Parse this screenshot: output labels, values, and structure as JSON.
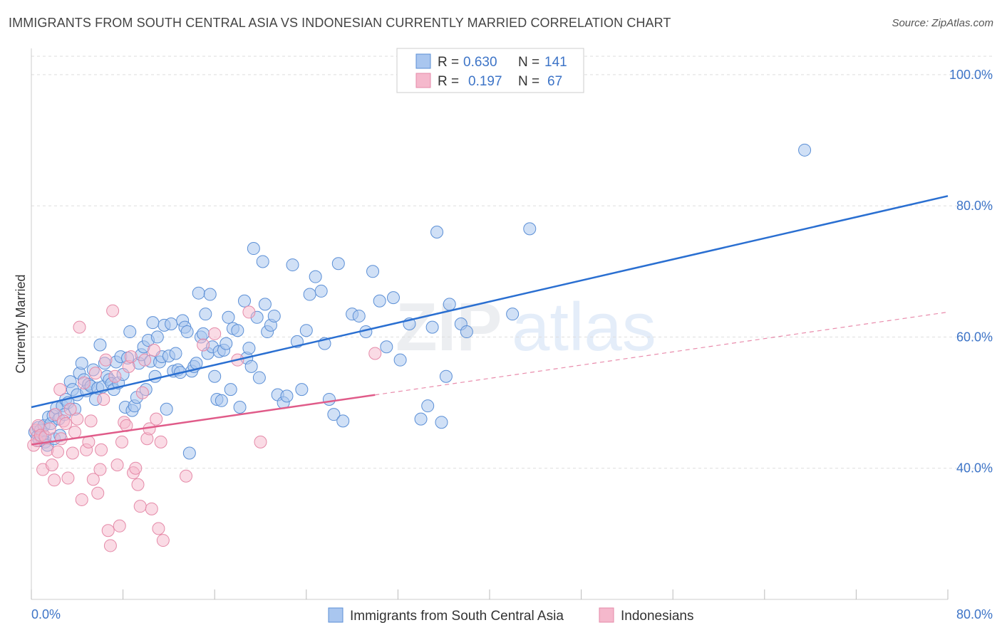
{
  "title": "IMMIGRANTS FROM SOUTH CENTRAL ASIA VS INDONESIAN CURRENTLY MARRIED CORRELATION CHART",
  "source": "Source: ZipAtlas.com",
  "watermark": {
    "zip": "ZIP",
    "atlas": "atlas"
  },
  "colors": {
    "blue_fill": "#a9c6ef",
    "blue_stroke": "#5b8fd6",
    "blue_line": "#2a6fd1",
    "pink_fill": "#f5b8cc",
    "pink_stroke": "#e58aa8",
    "pink_line": "#e05b89",
    "axis_text": "#3d74c7",
    "grid": "#dddddd"
  },
  "legend": {
    "rows": [
      {
        "r_label": "R =",
        "r_value": "0.630",
        "n_label": "N =",
        "n_value": "141"
      },
      {
        "r_label": "R =",
        "r_value": "0.197",
        "n_label": "N =",
        "n_value": "67"
      }
    ]
  },
  "chart_data": {
    "type": "scatter",
    "title": "IMMIGRANTS FROM SOUTH CENTRAL ASIA VS INDONESIAN CURRENTLY MARRIED CORRELATION CHART",
    "xlabel": "",
    "ylabel": "Currently Married",
    "xlim": [
      0,
      80
    ],
    "ylim": [
      20,
      104
    ],
    "x_tick_labels": [
      "0.0%",
      "80.0%"
    ],
    "y_ticks": [
      40,
      60,
      80,
      100
    ],
    "y_tick_labels": [
      "40.0%",
      "60.0%",
      "80.0%",
      "100.0%"
    ],
    "grid": true,
    "legend_position": "top-center",
    "series": [
      {
        "name": "Immigrants from South Central Asia",
        "color": "#a9c6ef",
        "trend": {
          "x": [
            0,
            80
          ],
          "y": [
            49.3,
            81.5
          ],
          "dashed_after": null
        },
        "points": [
          [
            0.3,
            45.5
          ],
          [
            0.5,
            44.8
          ],
          [
            0.6,
            46.2
          ],
          [
            0.7,
            44.2
          ],
          [
            0.8,
            45.8
          ],
          [
            0.9,
            44.6
          ],
          [
            1.0,
            45.2
          ],
          [
            1.1,
            46.5
          ],
          [
            1.2,
            44.0
          ],
          [
            1.4,
            43.5
          ],
          [
            1.5,
            47.8
          ],
          [
            1.7,
            46.8
          ],
          [
            1.9,
            48.0
          ],
          [
            2.0,
            44.5
          ],
          [
            2.2,
            49.2
          ],
          [
            2.4,
            47.5
          ],
          [
            2.5,
            45.0
          ],
          [
            2.7,
            49.5
          ],
          [
            2.9,
            48.2
          ],
          [
            3.0,
            50.5
          ],
          [
            3.2,
            50.0
          ],
          [
            3.4,
            53.2
          ],
          [
            3.6,
            52.0
          ],
          [
            3.8,
            49.0
          ],
          [
            4.0,
            51.2
          ],
          [
            4.2,
            54.5
          ],
          [
            4.4,
            56.0
          ],
          [
            4.6,
            53.5
          ],
          [
            4.8,
            51.8
          ],
          [
            5.0,
            52.8
          ],
          [
            5.2,
            52.5
          ],
          [
            5.4,
            55.0
          ],
          [
            5.6,
            50.5
          ],
          [
            5.8,
            52.2
          ],
          [
            6.0,
            58.8
          ],
          [
            6.2,
            52.4
          ],
          [
            6.4,
            56.0
          ],
          [
            6.6,
            54.0
          ],
          [
            6.8,
            53.5
          ],
          [
            7.0,
            52.9
          ],
          [
            7.2,
            52.0
          ],
          [
            7.4,
            56.2
          ],
          [
            7.6,
            53.0
          ],
          [
            7.8,
            57.0
          ],
          [
            8.0,
            54.3
          ],
          [
            8.2,
            49.3
          ],
          [
            8.4,
            56.8
          ],
          [
            8.6,
            60.8
          ],
          [
            8.8,
            48.8
          ],
          [
            9.0,
            49.5
          ],
          [
            9.2,
            50.8
          ],
          [
            9.4,
            56.0
          ],
          [
            9.6,
            57.3
          ],
          [
            9.8,
            58.5
          ],
          [
            10.0,
            52.0
          ],
          [
            10.2,
            59.5
          ],
          [
            10.4,
            56.3
          ],
          [
            10.6,
            62.2
          ],
          [
            10.8,
            54.0
          ],
          [
            11.0,
            60.0
          ],
          [
            11.2,
            56.2
          ],
          [
            11.4,
            57.0
          ],
          [
            11.6,
            61.8
          ],
          [
            11.8,
            49.0
          ],
          [
            12.0,
            57.1
          ],
          [
            12.2,
            62.0
          ],
          [
            12.4,
            54.8
          ],
          [
            12.6,
            57.5
          ],
          [
            12.8,
            55.0
          ],
          [
            13.0,
            54.6
          ],
          [
            13.2,
            62.5
          ],
          [
            13.4,
            61.5
          ],
          [
            13.6,
            60.8
          ],
          [
            13.8,
            42.3
          ],
          [
            14.0,
            54.8
          ],
          [
            14.2,
            55.5
          ],
          [
            14.4,
            56.0
          ],
          [
            14.6,
            66.7
          ],
          [
            14.8,
            60.0
          ],
          [
            15.0,
            60.5
          ],
          [
            15.2,
            63.5
          ],
          [
            15.4,
            57.5
          ],
          [
            15.6,
            66.5
          ],
          [
            15.8,
            58.5
          ],
          [
            16.0,
            54.0
          ],
          [
            16.2,
            50.5
          ],
          [
            16.4,
            57.8
          ],
          [
            16.6,
            50.3
          ],
          [
            16.8,
            58.0
          ],
          [
            17.0,
            59.0
          ],
          [
            17.2,
            63.0
          ],
          [
            17.4,
            52.0
          ],
          [
            17.6,
            61.3
          ],
          [
            18.0,
            61.0
          ],
          [
            18.2,
            49.3
          ],
          [
            18.6,
            65.5
          ],
          [
            18.8,
            56.8
          ],
          [
            19.0,
            58.3
          ],
          [
            19.2,
            55.5
          ],
          [
            19.4,
            73.5
          ],
          [
            19.7,
            63.0
          ],
          [
            19.9,
            53.8
          ],
          [
            20.2,
            71.5
          ],
          [
            20.4,
            65.0
          ],
          [
            20.6,
            60.8
          ],
          [
            20.9,
            61.8
          ],
          [
            21.2,
            63.2
          ],
          [
            21.5,
            51.2
          ],
          [
            22.0,
            50.0
          ],
          [
            22.3,
            51.0
          ],
          [
            22.8,
            71.0
          ],
          [
            23.2,
            59.3
          ],
          [
            23.6,
            52.0
          ],
          [
            24.0,
            61.0
          ],
          [
            24.3,
            66.5
          ],
          [
            24.8,
            69.2
          ],
          [
            25.3,
            67.0
          ],
          [
            25.6,
            59.0
          ],
          [
            26.0,
            50.5
          ],
          [
            26.4,
            48.2
          ],
          [
            26.8,
            71.2
          ],
          [
            27.2,
            47.2
          ],
          [
            28.0,
            63.5
          ],
          [
            28.6,
            63.2
          ],
          [
            29.2,
            60.8
          ],
          [
            29.8,
            70.0
          ],
          [
            30.4,
            65.5
          ],
          [
            31.0,
            58.5
          ],
          [
            31.6,
            66.0
          ],
          [
            32.2,
            56.5
          ],
          [
            33.0,
            62.0
          ],
          [
            34.0,
            47.5
          ],
          [
            34.6,
            49.5
          ],
          [
            35.0,
            61.5
          ],
          [
            35.4,
            76.0
          ],
          [
            35.8,
            47.0
          ],
          [
            36.2,
            54.0
          ],
          [
            36.5,
            65.0
          ],
          [
            37.5,
            62.0
          ],
          [
            38.0,
            60.8
          ],
          [
            42.0,
            63.5
          ],
          [
            43.5,
            76.5
          ],
          [
            67.5,
            88.5
          ]
        ]
      },
      {
        "name": "Indonesians",
        "color": "#f5b8cc",
        "trend": {
          "x": [
            0,
            80
          ],
          "y": [
            43.6,
            63.8
          ],
          "dashed_after": 30
        },
        "points": [
          [
            0.2,
            43.5
          ],
          [
            0.4,
            45.8
          ],
          [
            0.5,
            44.2
          ],
          [
            0.6,
            46.5
          ],
          [
            0.8,
            45.0
          ],
          [
            1.0,
            39.8
          ],
          [
            1.2,
            44.8
          ],
          [
            1.4,
            42.8
          ],
          [
            1.6,
            46.0
          ],
          [
            1.8,
            40.5
          ],
          [
            2.0,
            38.2
          ],
          [
            2.1,
            48.2
          ],
          [
            2.3,
            42.5
          ],
          [
            2.5,
            52.0
          ],
          [
            2.6,
            44.5
          ],
          [
            2.8,
            47.2
          ],
          [
            3.0,
            46.8
          ],
          [
            3.2,
            38.5
          ],
          [
            3.4,
            49.0
          ],
          [
            3.6,
            42.3
          ],
          [
            3.8,
            45.5
          ],
          [
            4.0,
            47.5
          ],
          [
            4.2,
            61.5
          ],
          [
            4.4,
            35.2
          ],
          [
            4.6,
            53.0
          ],
          [
            4.8,
            42.8
          ],
          [
            5.0,
            44.0
          ],
          [
            5.2,
            47.2
          ],
          [
            5.4,
            38.3
          ],
          [
            5.6,
            54.5
          ],
          [
            5.8,
            36.2
          ],
          [
            6.0,
            39.8
          ],
          [
            6.1,
            42.8
          ],
          [
            6.3,
            50.5
          ],
          [
            6.5,
            56.5
          ],
          [
            6.7,
            30.5
          ],
          [
            6.9,
            28.2
          ],
          [
            7.1,
            64.0
          ],
          [
            7.3,
            54.0
          ],
          [
            7.5,
            40.5
          ],
          [
            7.7,
            31.2
          ],
          [
            7.9,
            44.0
          ],
          [
            8.1,
            47.0
          ],
          [
            8.3,
            46.5
          ],
          [
            8.5,
            55.5
          ],
          [
            8.7,
            57.0
          ],
          [
            8.9,
            39.3
          ],
          [
            9.1,
            40.0
          ],
          [
            9.3,
            37.5
          ],
          [
            9.5,
            34.2
          ],
          [
            9.7,
            51.5
          ],
          [
            9.9,
            56.5
          ],
          [
            10.1,
            44.5
          ],
          [
            10.3,
            46.0
          ],
          [
            10.5,
            33.8
          ],
          [
            10.7,
            58.0
          ],
          [
            10.9,
            47.5
          ],
          [
            11.1,
            30.8
          ],
          [
            11.3,
            44.0
          ],
          [
            11.5,
            29.0
          ],
          [
            13.5,
            38.8
          ],
          [
            15.0,
            58.8
          ],
          [
            16.0,
            60.5
          ],
          [
            18.0,
            56.5
          ],
          [
            19.0,
            63.8
          ],
          [
            20.0,
            44.0
          ],
          [
            30.0,
            57.5
          ]
        ]
      }
    ]
  },
  "bottom_legend": {
    "items": [
      {
        "label": "Immigrants from South Central Asia"
      },
      {
        "label": "Indonesians"
      }
    ]
  }
}
